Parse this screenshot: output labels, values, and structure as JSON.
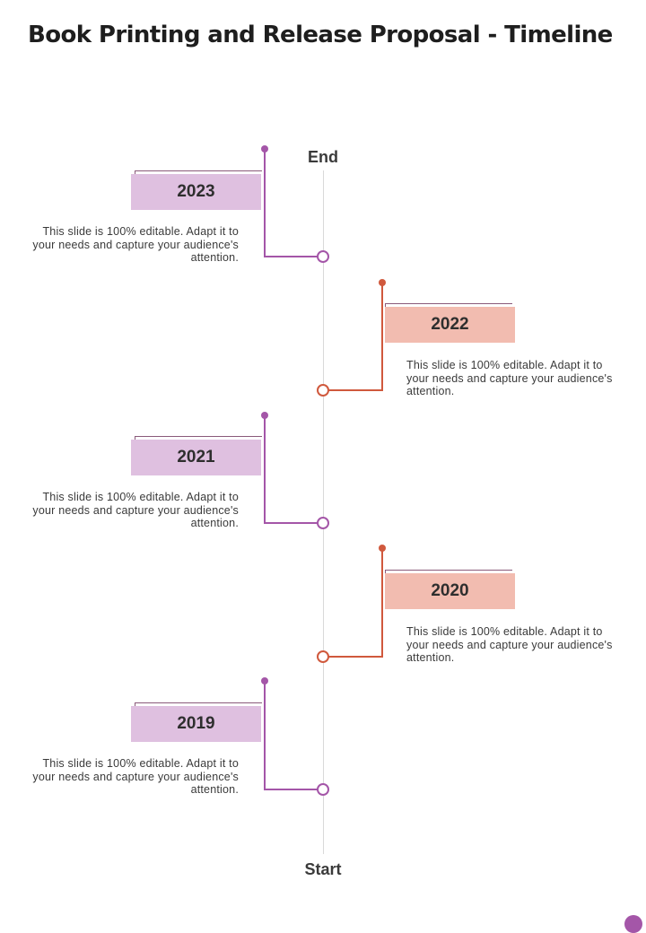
{
  "title": "Book Printing and Release Proposal - Timeline",
  "axis": {
    "end_label": "End",
    "start_label": "Start"
  },
  "colors": {
    "purple": "#a456a8",
    "purple_fill": "#dfc0e0",
    "coral": "#d0593d",
    "coral_fill": "#f2bcb0"
  },
  "milestones": [
    {
      "year": "2023",
      "description": "This slide is 100% editable. Adapt it to your needs and capture your audience's attention."
    },
    {
      "year": "2022",
      "description": "This slide is 100% editable. Adapt it to your needs and capture your audience's attention."
    },
    {
      "year": "2021",
      "description": "This slide is 100% editable. Adapt it to your needs and capture your audience's attention."
    },
    {
      "year": "2020",
      "description": "This slide is 100% editable. Adapt it to your needs and capture your audience's attention."
    },
    {
      "year": "2019",
      "description": "This slide is 100% editable. Adapt it to your needs and capture your audience's attention."
    }
  ]
}
